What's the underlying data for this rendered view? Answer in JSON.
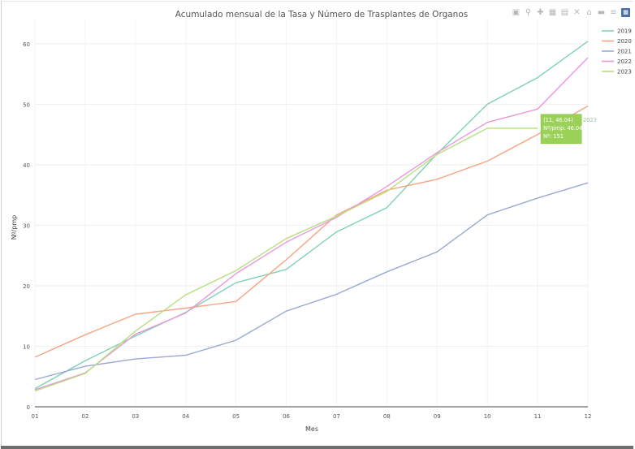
{
  "modebar": {
    "icons": [
      "camera-icon",
      "zoom-icon",
      "pan-icon",
      "zoom-in-icon",
      "zoom-out-icon",
      "autoscale-icon",
      "reset-axes-icon",
      "spike-lines-icon",
      "compare-hover-icon",
      "plotly-logo-icon"
    ]
  },
  "chart_data": {
    "type": "line",
    "title": "Acumulado mensual de la Tasa y Número de Trasplantes de Organos",
    "xlabel": "Mes",
    "ylabel": "Nº/pmp",
    "categories": [
      "01",
      "02",
      "03",
      "04",
      "05",
      "06",
      "07",
      "08",
      "09",
      "10",
      "11",
      "12"
    ],
    "ylim": [
      0,
      64
    ],
    "yticks": [
      0,
      10,
      20,
      30,
      40,
      50,
      60
    ],
    "grid": true,
    "legend_position": "top-right",
    "series": [
      {
        "name": "2019",
        "color": "#7fd1b3",
        "values": [
          3.0,
          7.6,
          11.7,
          15.6,
          20.5,
          22.7,
          28.9,
          32.9,
          41.8,
          50.0,
          54.4,
          60.4
        ]
      },
      {
        "name": "2020",
        "color": "#f7a582",
        "values": [
          8.2,
          11.9,
          15.3,
          16.3,
          17.4,
          24.3,
          31.7,
          35.8,
          37.6,
          40.6,
          45.0,
          49.7
        ]
      },
      {
        "name": "2021",
        "color": "#9aa8d4",
        "values": [
          4.5,
          6.7,
          7.9,
          8.5,
          11.0,
          15.8,
          18.6,
          22.3,
          25.6,
          31.7,
          34.5,
          37.0
        ]
      },
      {
        "name": "2022",
        "color": "#ea97dc",
        "values": [
          2.8,
          5.6,
          12.0,
          15.5,
          22.0,
          27.2,
          31.3,
          36.4,
          42.0,
          47.0,
          49.2,
          57.7
        ]
      },
      {
        "name": "2023",
        "color": "#b6e07e",
        "values": [
          2.6,
          5.5,
          12.5,
          18.5,
          22.5,
          27.8,
          31.5,
          35.6,
          41.7,
          46.04,
          46.04,
          null
        ]
      }
    ],
    "tooltip": {
      "series": "2023",
      "lines": [
        "(11, 46.04)",
        "Nº/pmp: 46.04",
        "Nº: 151"
      ],
      "label": "2023",
      "color": "#9bd158",
      "category": "11",
      "value": 46.04
    }
  }
}
